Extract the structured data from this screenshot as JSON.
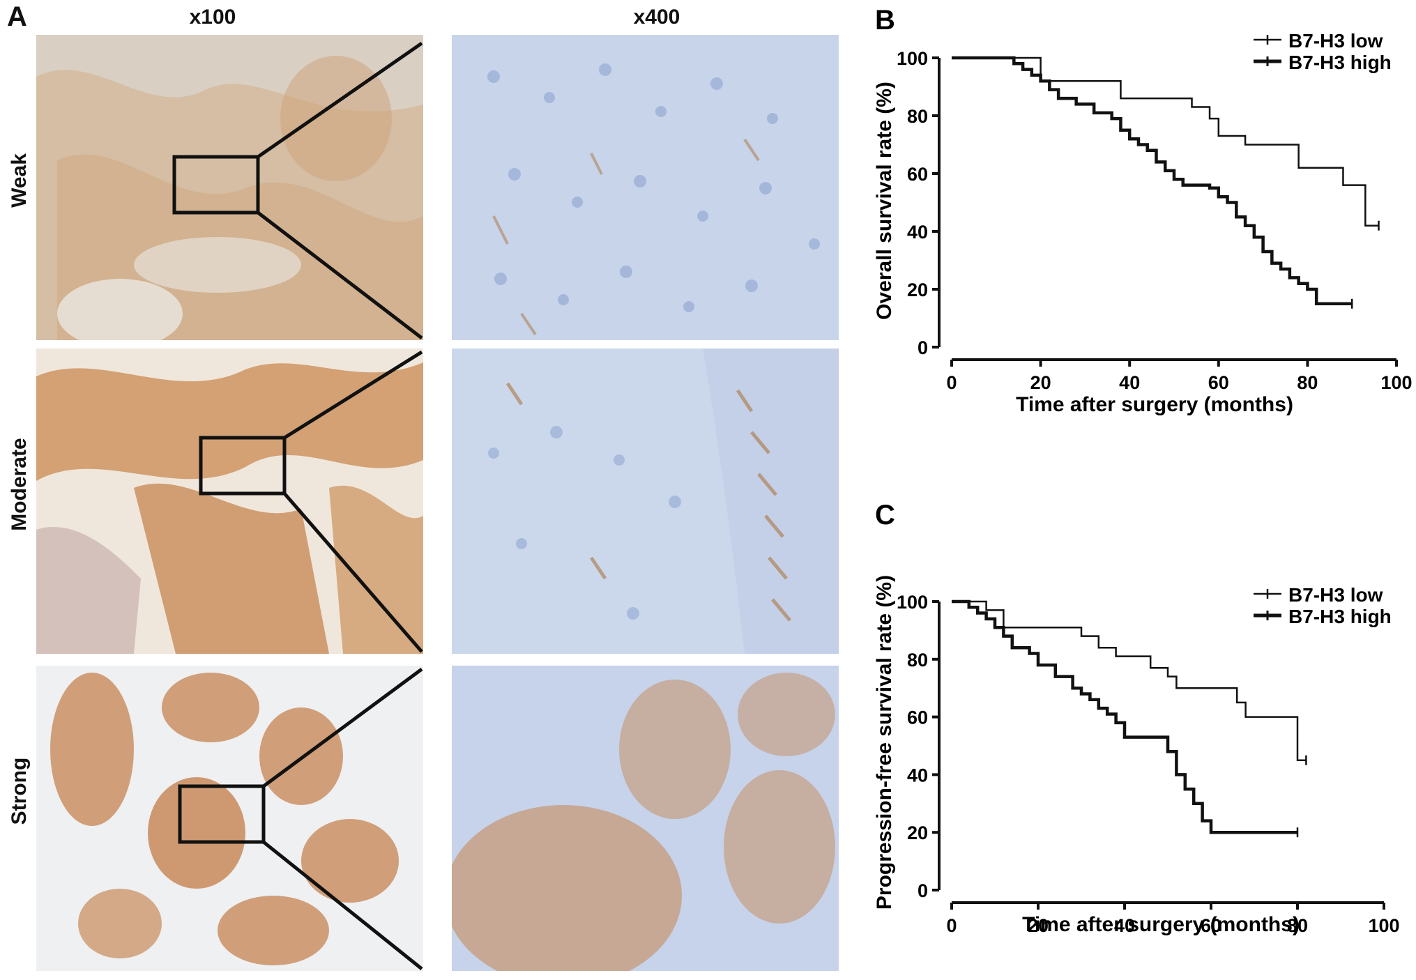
{
  "panel_a": {
    "letter": "A",
    "col_headers": [
      "x100",
      "x400"
    ],
    "rows": [
      "Weak",
      "Moderate",
      "Strong"
    ],
    "tissue_colors": {
      "weak_low": "#d9cfc2",
      "weak_high": "#d2b08a",
      "moderate_low": "#efe7dc",
      "moderate_high": "#c98a52",
      "strong_low": "#eef0f2",
      "strong_high": "#c88a5a",
      "hpf_bg": "#c7d4ea",
      "hpf_nuclei": "#8ea4cf",
      "hpf_brown": "#b08358"
    }
  },
  "chart_data": [
    {
      "type": "line",
      "panel_letter": "B",
      "xlabel": "Time after surgery (months)",
      "ylabel": "Overall survival rate (%)",
      "xlim": [
        0,
        100
      ],
      "ylim": [
        0,
        100
      ],
      "xticks": [
        "0",
        "20",
        "40",
        "60",
        "80",
        "100"
      ],
      "yticks": [
        "0",
        "20",
        "40",
        "60",
        "80",
        "100"
      ],
      "grid": false,
      "legend_position": "top-right",
      "series": [
        {
          "name": "B7-H3 low",
          "line_width": "thin",
          "x": [
            0,
            20,
            20,
            38,
            38,
            54,
            54,
            58,
            58,
            60,
            60,
            66,
            66,
            78,
            78,
            88,
            88,
            93,
            93,
            96
          ],
          "y": [
            100,
            100,
            92,
            92,
            86,
            86,
            83,
            83,
            79,
            79,
            73,
            73,
            70,
            70,
            62,
            62,
            56,
            56,
            42,
            42
          ]
        },
        {
          "name": "B7-H3 high",
          "line_width": "thick",
          "x": [
            0,
            14,
            16,
            18,
            20,
            22,
            24,
            28,
            32,
            36,
            38,
            40,
            42,
            44,
            46,
            48,
            50,
            52,
            58,
            60,
            62,
            64,
            66,
            68,
            70,
            72,
            74,
            76,
            78,
            80,
            82,
            90
          ],
          "y": [
            100,
            98,
            96,
            94,
            92,
            89,
            86,
            84,
            81,
            79,
            75,
            72,
            70,
            68,
            64,
            61,
            58,
            56,
            55,
            52,
            50,
            45,
            42,
            38,
            33,
            29,
            27,
            24,
            22,
            20,
            15,
            15
          ]
        }
      ]
    },
    {
      "type": "line",
      "panel_letter": "C",
      "xlabel": "Time after surgery (months)",
      "ylabel": "Progression-free survival rate (%)",
      "xlim": [
        0,
        100
      ],
      "ylim": [
        0,
        100
      ],
      "xticks": [
        "0",
        "20",
        "40",
        "60",
        "80",
        "100"
      ],
      "yticks": [
        "0",
        "20",
        "40",
        "60",
        "80",
        "100"
      ],
      "grid": false,
      "legend_position": "top-right",
      "series": [
        {
          "name": "B7-H3 low",
          "line_width": "thin",
          "x": [
            0,
            8,
            8,
            12,
            12,
            30,
            30,
            34,
            34,
            38,
            38,
            46,
            46,
            50,
            50,
            52,
            52,
            56,
            56,
            66,
            66,
            68,
            68,
            80,
            80,
            82
          ],
          "y": [
            100,
            100,
            97,
            97,
            91,
            91,
            88,
            88,
            84,
            84,
            81,
            81,
            77,
            77,
            74,
            74,
            70,
            70,
            70,
            70,
            65,
            65,
            60,
            60,
            45,
            45
          ]
        },
        {
          "name": "B7-H3 high",
          "line_width": "thick",
          "x": [
            0,
            4,
            6,
            8,
            10,
            12,
            14,
            18,
            20,
            24,
            28,
            30,
            32,
            34,
            36,
            38,
            40,
            48,
            50,
            52,
            54,
            56,
            58,
            60,
            70,
            80
          ],
          "y": [
            100,
            98,
            96,
            94,
            91,
            88,
            84,
            82,
            78,
            74,
            70,
            68,
            66,
            63,
            61,
            58,
            53,
            53,
            48,
            40,
            35,
            30,
            24,
            20,
            20,
            20
          ]
        }
      ]
    }
  ]
}
